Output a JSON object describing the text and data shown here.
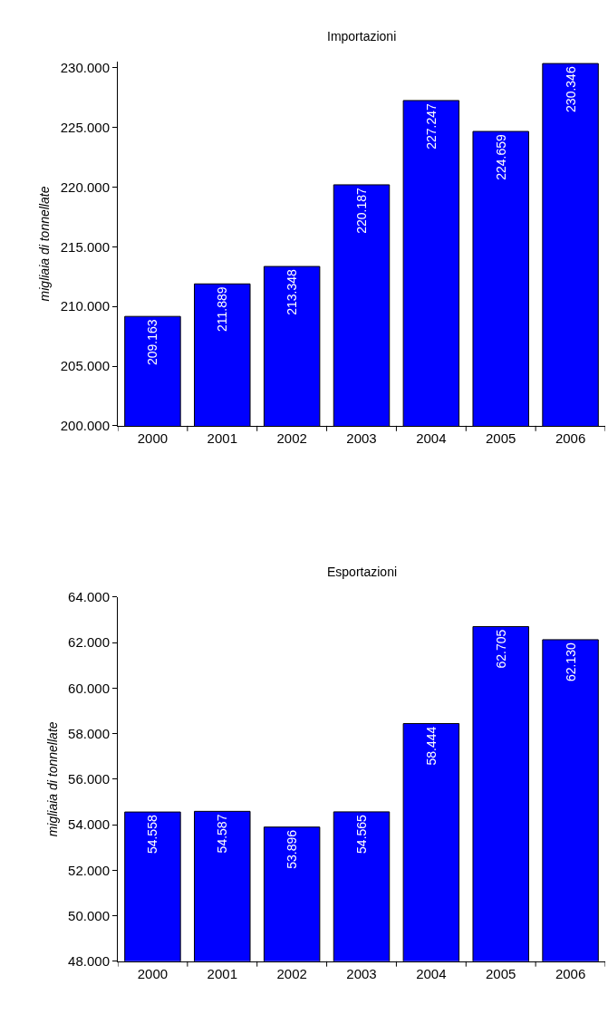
{
  "chart_data": [
    {
      "type": "bar",
      "title": "Importazioni",
      "ylabel": "migliaia di tonnellate",
      "categories": [
        "2000",
        "2001",
        "2002",
        "2003",
        "2004",
        "2005",
        "2006"
      ],
      "values": [
        209163,
        211889,
        213348,
        220187,
        227247,
        224659,
        230346
      ],
      "value_labels": [
        "209.163",
        "211.889",
        "213.348",
        "220.187",
        "227.247",
        "224.659",
        "230.346"
      ],
      "color": "#0000ff",
      "ylim": [
        200000,
        230500
      ],
      "yticks": [
        {
          "value": 200000,
          "label": "200.000"
        },
        {
          "value": 205000,
          "label": "205.000"
        },
        {
          "value": 210000,
          "label": "210.000"
        },
        {
          "value": 215000,
          "label": "215.000"
        },
        {
          "value": 220000,
          "label": "220.000"
        },
        {
          "value": 225000,
          "label": "225.000"
        },
        {
          "value": 230000,
          "label": "230.000"
        }
      ],
      "legend": false
    },
    {
      "type": "bar",
      "title": "Esportazioni",
      "ylabel": "migliaia di tonnellate",
      "categories": [
        "2000",
        "2001",
        "2002",
        "2003",
        "2004",
        "2005",
        "2006"
      ],
      "values": [
        54558,
        54587,
        53896,
        54565,
        58444,
        62705,
        62130
      ],
      "value_labels": [
        "54.558",
        "54.587",
        "53.896",
        "54.565",
        "58.444",
        "62.705",
        "62.130"
      ],
      "color": "#0000ff",
      "ylim": [
        48000,
        64000
      ],
      "yticks": [
        {
          "value": 48000,
          "label": "48.000"
        },
        {
          "value": 50000,
          "label": "50.000"
        },
        {
          "value": 52000,
          "label": "52.000"
        },
        {
          "value": 54000,
          "label": "54.000"
        },
        {
          "value": 56000,
          "label": "56.000"
        },
        {
          "value": 58000,
          "label": "58.000"
        },
        {
          "value": 60000,
          "label": "60.000"
        },
        {
          "value": 62000,
          "label": "62.000"
        },
        {
          "value": 64000,
          "label": "64.000"
        }
      ],
      "legend": false
    }
  ]
}
